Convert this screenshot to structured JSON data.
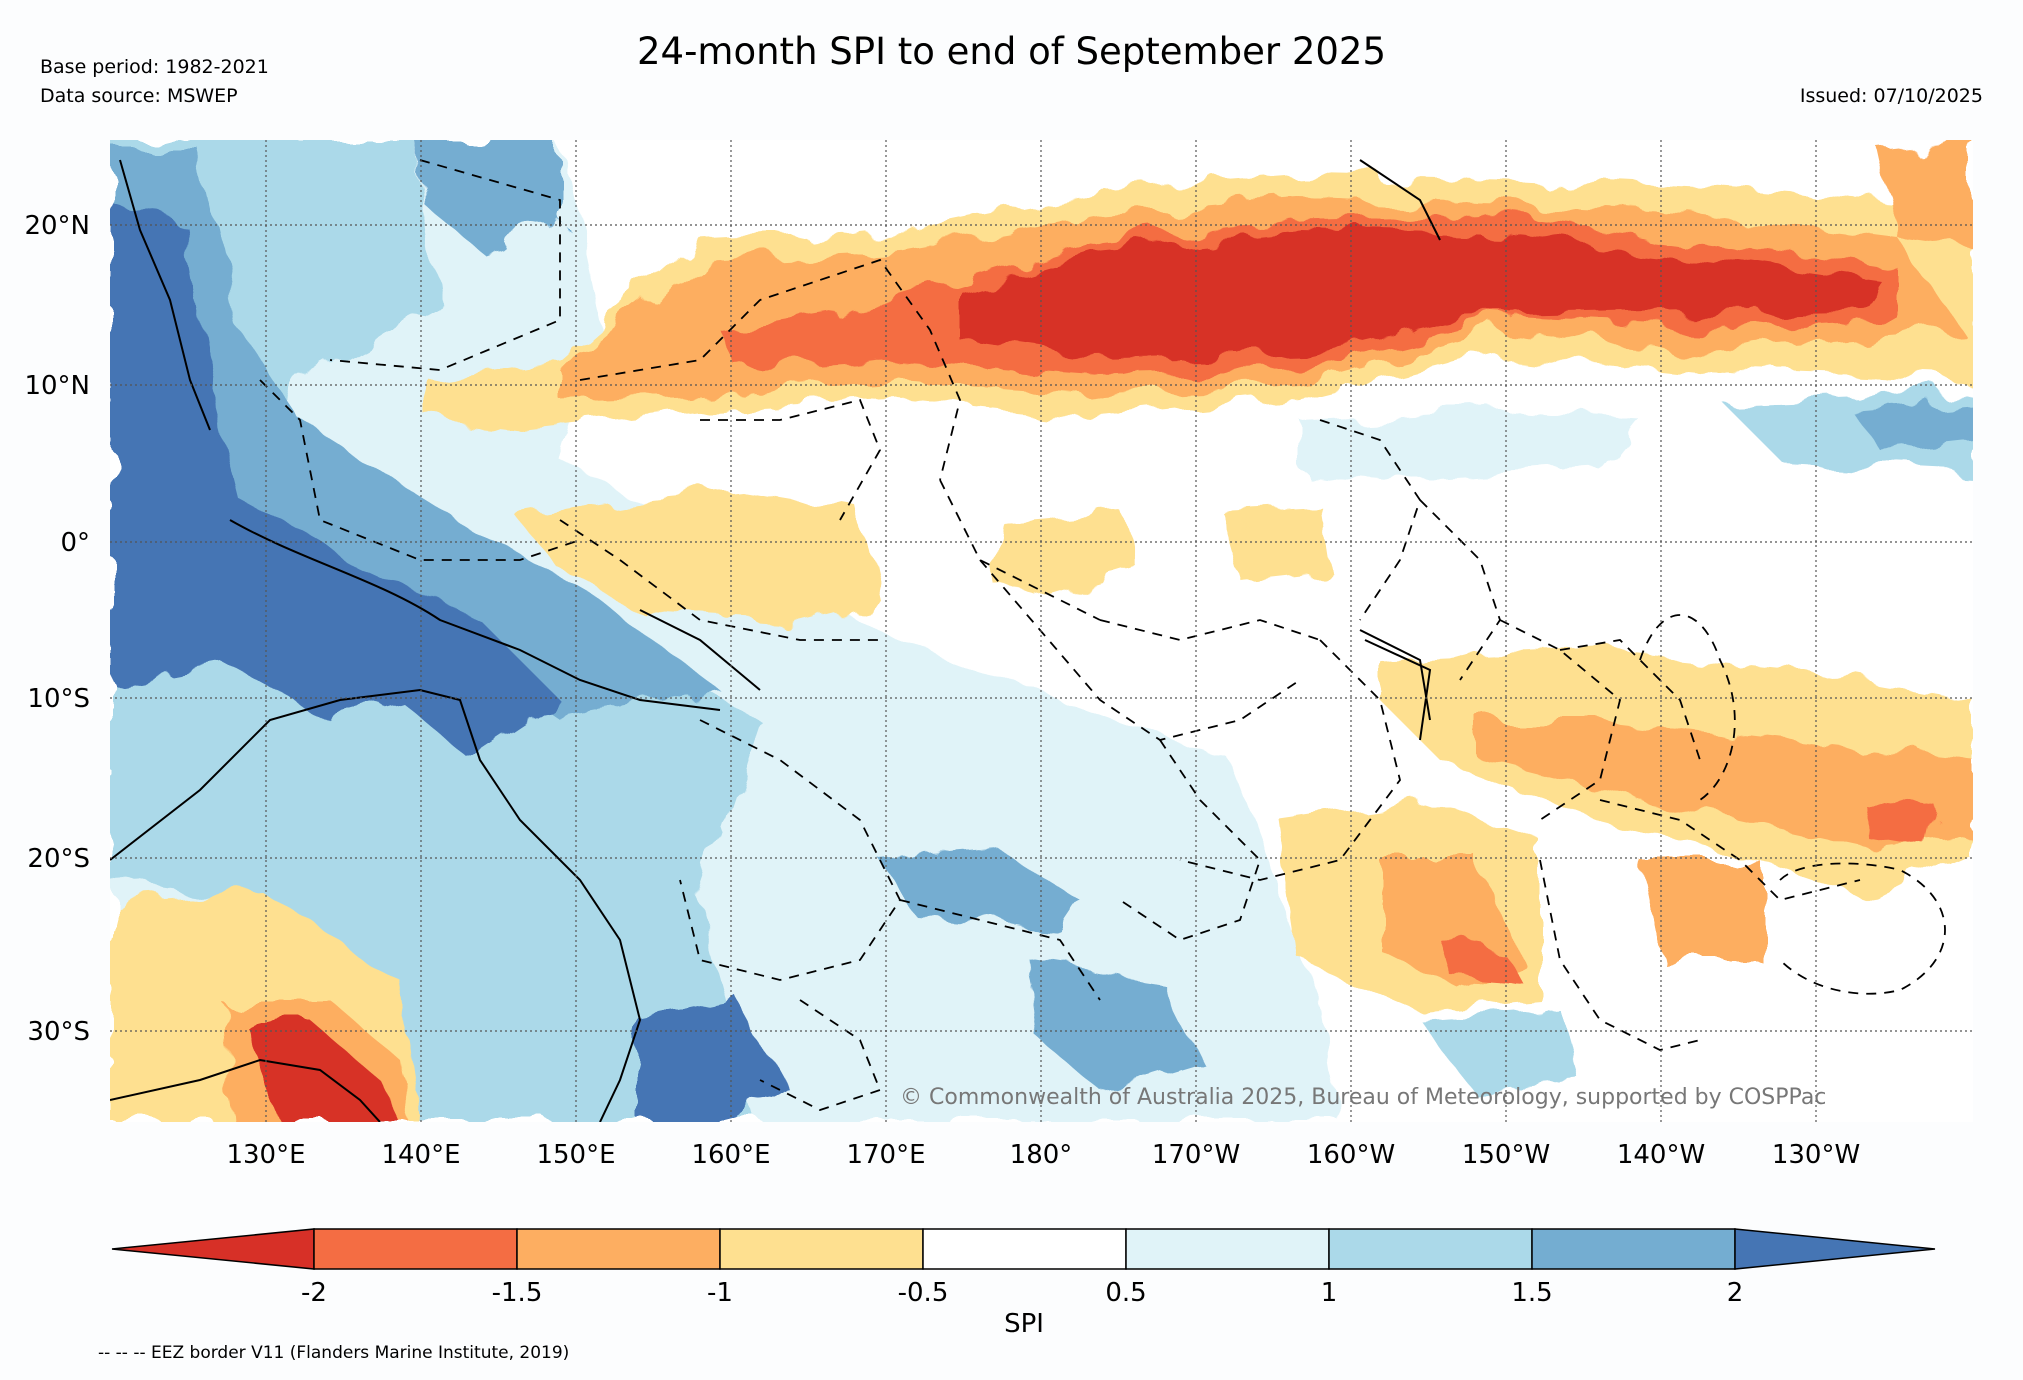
{
  "header": {
    "title": "24-month SPI to end of September 2025",
    "base_period": "Base period: 1982-2021",
    "data_source": "Data source: MSWEP",
    "issued": "Issued: 07/10/2025"
  },
  "map": {
    "lat_labels": [
      "20°N",
      "10°N",
      "0°",
      "10°S",
      "20°S",
      "30°S"
    ],
    "lon_labels": [
      "130°E",
      "140°E",
      "150°E",
      "160°E",
      "170°E",
      "180°",
      "170°W",
      "160°W",
      "150°W",
      "140°W",
      "130°W"
    ],
    "copyright": "© Commonwealth of Australia 2025, Bureau of Meteorology, supported by COSPPac"
  },
  "colorbar": {
    "label": "SPI",
    "ticks": [
      "-2",
      "-1.5",
      "-1",
      "-0.5",
      "0.5",
      "1",
      "1.5",
      "2"
    ],
    "colors": [
      "#d73027",
      "#f46d43",
      "#fdae61",
      "#fee090",
      "#ffffff",
      "#e0f3f8",
      "#abd9e9",
      "#74add1",
      "#4575b4"
    ]
  },
  "footnote": "-- -- -- EEZ border V11 (Flanders Marine Institute, 2019)"
}
